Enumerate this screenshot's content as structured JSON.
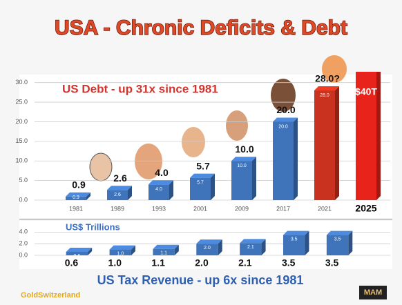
{
  "title": "USA - Chronic Deficits & Debt",
  "chart_data": [
    {
      "type": "bar",
      "annotation": "US Debt  - up 31x since 1981",
      "categories": [
        "1981",
        "1989",
        "1993",
        "2001",
        "2009",
        "2017",
        "2021",
        "2025"
      ],
      "values": [
        0.9,
        2.6,
        4.0,
        5.7,
        10.0,
        20.0,
        28.0,
        40
      ],
      "value_labels": [
        "0.9",
        "2.6",
        "4.0",
        "5.7",
        "10.0",
        "20.0",
        "28.0?",
        "$40T"
      ],
      "bar_labels": [
        "0.9",
        "2.6",
        "4.0",
        "5.7",
        "10.0",
        "20.0",
        "28.0",
        null
      ],
      "colors": [
        "#3f74ba",
        "#3f74ba",
        "#3f74ba",
        "#3f74ba",
        "#3f74ba",
        "#3f74ba",
        "#c8321f",
        "#e8231b"
      ],
      "ylim": [
        0,
        31
      ],
      "yticks": [
        {
          "value": 0,
          "label": "0.0"
        },
        {
          "value": 5,
          "label": "5.0"
        },
        {
          "value": 10,
          "label": "10.0"
        },
        {
          "value": 15,
          "label": "15.0"
        },
        {
          "value": 20,
          "label": "20.0"
        },
        {
          "value": 25,
          "label": "25.0"
        },
        {
          "value": 30,
          "label": "30.0"
        }
      ],
      "grid": true
    },
    {
      "type": "bar",
      "annotation": "US$ Trillions",
      "title": "US Tax Revenue  - up 6x since 1981",
      "values": [
        0.6,
        1.0,
        1.1,
        2.0,
        2.1,
        3.5,
        3.5
      ],
      "value_labels": [
        "0.6",
        "1.0",
        "1.1",
        "2.0",
        "2.1",
        "3.5",
        "3.5"
      ],
      "color": "#3f74ba",
      "ylim": [
        0,
        4.4
      ],
      "yticks": [
        {
          "value": 0,
          "label": "0.0"
        },
        {
          "value": 2,
          "label": "2.0"
        },
        {
          "value": 4,
          "label": "4.0"
        }
      ],
      "grid": true
    }
  ],
  "source": "GoldSwitzerland",
  "logo": "MAM"
}
